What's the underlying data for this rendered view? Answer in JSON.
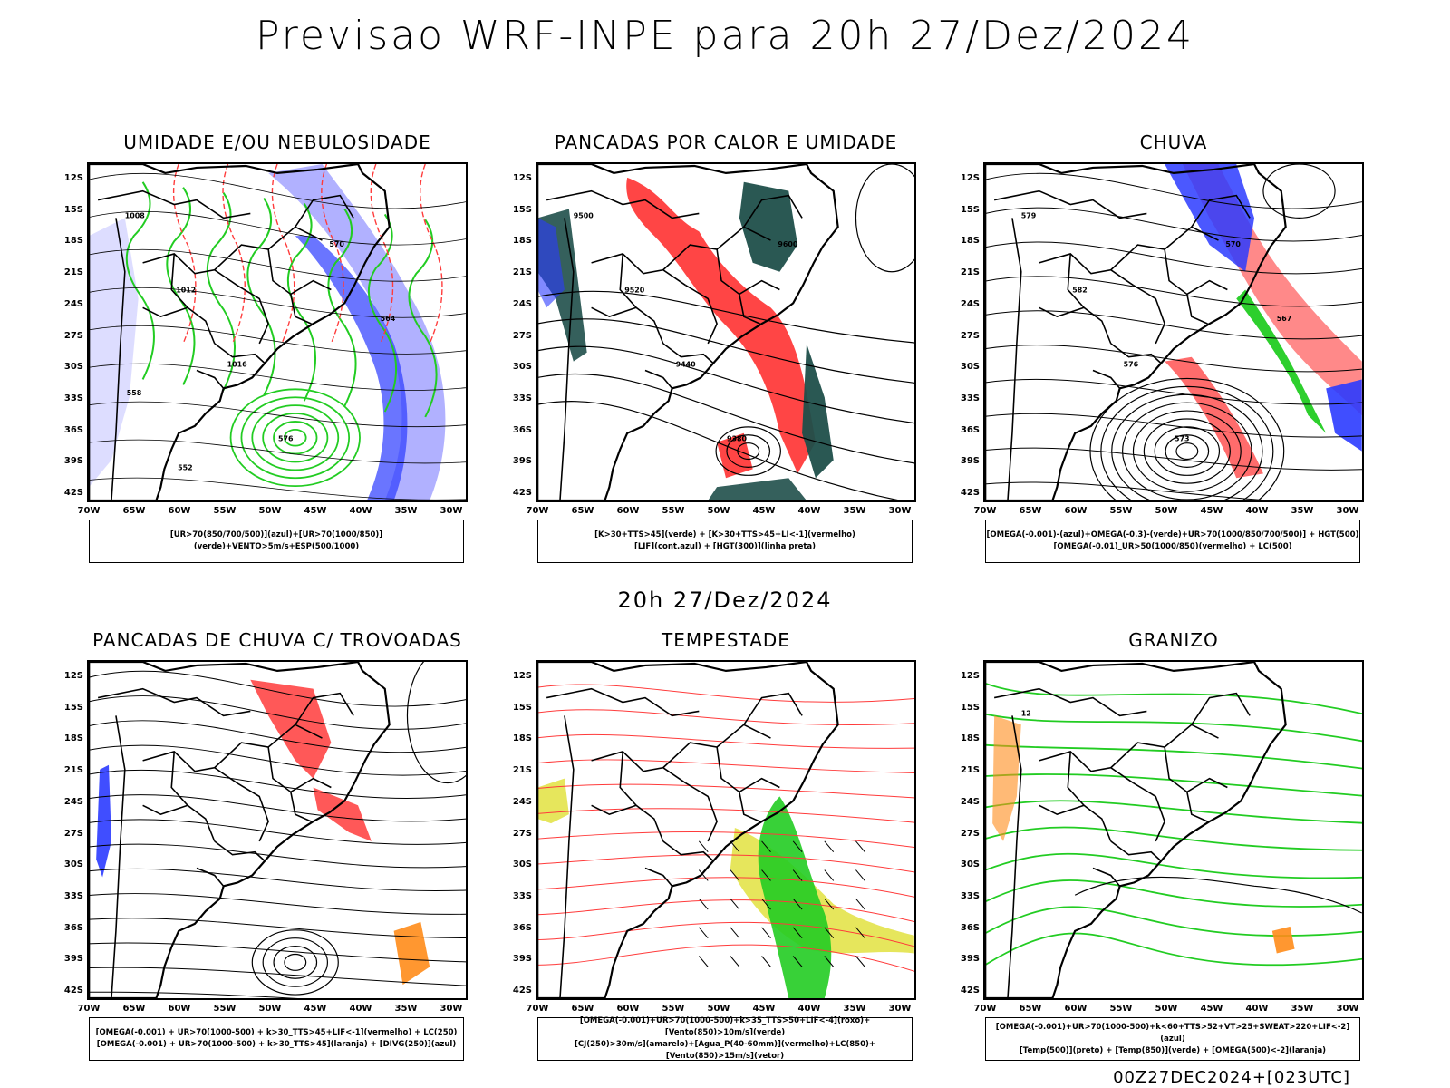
{
  "title": "Previsao WRF-INPE  para 20h 27/Dez/2024",
  "mid_date": "20h 27/Dez/2024",
  "footer": "00Z27DEC2024+[023UTC]",
  "lat_labels": [
    "12S",
    "15S",
    "18S",
    "21S",
    "24S",
    "27S",
    "30S",
    "33S",
    "36S",
    "39S",
    "42S"
  ],
  "lon_labels": [
    "70W",
    "65W",
    "60W",
    "55W",
    "50W",
    "45W",
    "40W",
    "35W",
    "30W"
  ],
  "panels": [
    {
      "title": "UMIDADE E/OU NEBULOSIDADE",
      "legend": [
        "[UR>70(850/700/500)](azul)+[UR>70(1000/850)](verde)+VENTO>5m/s+ESP(500/1000)"
      ],
      "labels": [
        "1008",
        "1012",
        "1016",
        "576",
        "570",
        "564",
        "558",
        "552"
      ]
    },
    {
      "title": "PANCADAS POR CALOR E UMIDADE",
      "legend": [
        "[K>30+TTS>45](verde)  +  [K>30+TTS>45+LI<-1](vermelho)",
        "[LIF](cont.azul)  +  [HGT(300)](linha preta)"
      ],
      "labels": [
        "9500",
        "9520",
        "9440",
        "9380",
        "9600"
      ]
    },
    {
      "title": "CHUVA",
      "legend": [
        "[OMEGA(-0.001)-(azul)+OMEGA(-0.3)-(verde)+UR>70(1000/850/700/500)]  +  HGT(500)",
        "[OMEGA(-0.01)_UR>50(1000/850)(vermelho)  +  LC(500)"
      ],
      "labels": [
        "579",
        "582",
        "576",
        "573",
        "570",
        "567"
      ]
    },
    {
      "title": "PANCADAS DE CHUVA C/ TROVOADAS",
      "legend": [
        "[OMEGA(-0.001)  +  UR>70(1000-500)  +  k>30_TTS>45+LIF<-1](vermelho)  +  LC(250)",
        "[OMEGA(-0.001)  +  UR>70(1000-500)  +  k>30_TTS>45](laranja)  +  [DIVG(250)](azul)"
      ],
      "labels": []
    },
    {
      "title": "TEMPESTADE",
      "legend": [
        "[OMEGA(-0.001)+UR>70(1000-500)+k>35_TTS>50+LIF<-4](roxo)+[Vento(850)>10m/s](verde)",
        "[CJ(250)>30m/s](amarelo)+[Agua_P(40-60mm)](vermelho)+LC(850)+[Vento(850)>15m/s](vetor)"
      ],
      "labels": []
    },
    {
      "title": "GRANIZO",
      "legend": [
        "[OMEGA(-0.001)+UR>70(1000-500)+k<60+TTS>52+VT>25+SWEAT>220+LIF<-2](azul)",
        "[Temp(500)](preto)  +  [Temp(850)](verde)  +  [OMEGA(500)<-2](laranja)"
      ],
      "labels": [
        "12"
      ]
    }
  ],
  "colors": {
    "red": "#ff3b3b",
    "green": "#22cc22",
    "blue": "#2b3bff",
    "lightblue": "#a8a8ff",
    "teal": "#1f4f4a",
    "yellow": "#e3e34a",
    "orange": "#ff8c1a"
  }
}
